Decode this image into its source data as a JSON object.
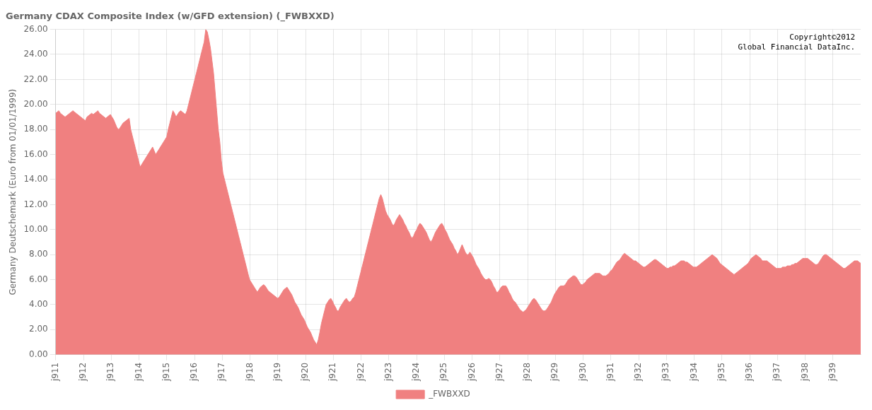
{
  "chart_data": {
    "type": "area",
    "title": "Germany CDAX Composite Index (w/GFD extension) (_FWBXXD)",
    "ylabel": "Germany Deutschemark (Euro from 01/01/1999)",
    "annotations": [
      "Copyright©2012\nGlobal Financial DataInc."
    ],
    "x": [
      1911,
      1911.0563,
      1911.1126,
      1911.1689,
      1911.2252,
      1911.2816,
      1911.3379,
      1911.3942,
      1911.4505,
      1911.5068,
      1911.5631,
      1911.6194,
      1911.6757,
      1911.732,
      1911.7883,
      1911.8447,
      1911.901,
      1911.9573,
      1912.0136,
      1912.0699,
      1912.1262,
      1912.1825,
      1912.2388,
      1912.2951,
      1912.3515,
      1912.4078,
      1912.4641,
      1912.5204,
      1912.5767,
      1912.633,
      1912.6893,
      1912.7456,
      1912.8019,
      1912.8583,
      1912.9146,
      1912.9709,
      1913.0272,
      1913.0835,
      1913.1398,
      1913.1961,
      1913.2524,
      1913.3087,
      1913.365,
      1913.4214,
      1913.4777,
      1913.534,
      1913.5903,
      1913.6466,
      1913.7029,
      1913.7592,
      1913.8155,
      1913.8718,
      1913.9282,
      1913.9845,
      1914.0408,
      1914.0971,
      1914.1534,
      1914.2097,
      1914.266,
      1914.3223,
      1914.3786,
      1914.435,
      1914.4913,
      1914.5476,
      1914.6039,
      1914.6602,
      1914.7165,
      1914.7728,
      1914.8291,
      1914.8854,
      1914.9417,
      1914.9981,
      1915.0544,
      1915.1107,
      1915.167,
      1915.2233,
      1915.2796,
      1915.3359,
      1915.3922,
      1915.4485,
      1915.5049,
      1915.5612,
      1915.6175,
      1915.6738,
      1915.7301,
      1915.7864,
      1915.8427,
      1915.899,
      1915.9553,
      1916.0117,
      1916.068,
      1916.1243,
      1916.1806,
      1916.2369,
      1916.2932,
      1916.3495,
      1916.4058,
      1916.4621,
      1916.5184,
      1916.5748,
      1916.6311,
      1916.6874,
      1916.7437,
      1916.8,
      1916.8563,
      1916.9126,
      1916.9689,
      1917.0252,
      1917.0816,
      1917.1379,
      1917.1942,
      1917.2505,
      1917.3068,
      1917.3631,
      1917.4194,
      1917.4757,
      1917.532,
      1917.5883,
      1917.6447,
      1917.701,
      1917.7573,
      1917.8136,
      1917.8699,
      1917.9262,
      1917.9825,
      1918.0388,
      1918.0951,
      1918.1515,
      1918.2078,
      1918.2641,
      1918.3204,
      1918.3767,
      1918.433,
      1918.4893,
      1918.5456,
      1918.6019,
      1918.6583,
      1918.7146,
      1918.7709,
      1918.8272,
      1918.8835,
      1918.9398,
      1918.9961,
      1919.0524,
      1919.1087,
      1919.165,
      1919.2214,
      1919.2777,
      1919.334,
      1919.3903,
      1919.4466,
      1919.5029,
      1919.5592,
      1919.6155,
      1919.6718,
      1919.7282,
      1919.7845,
      1919.8408,
      1919.8971,
      1919.9534,
      1920.0097,
      1920.066,
      1920.1223,
      1920.1786,
      1920.235,
      1920.2913,
      1920.3476,
      1920.4039,
      1920.4602,
      1920.5165,
      1920.5728,
      1920.6291,
      1920.6854,
      1920.7417,
      1920.7981,
      1920.8544,
      1920.9107,
      1920.967,
      1921.0233,
      1921.0796,
      1921.1359,
      1921.1922,
      1921.2485,
      1921.3049,
      1921.3612,
      1921.4175,
      1921.4738,
      1921.5301,
      1921.5864,
      1921.6427,
      1921.699,
      1921.7553,
      1921.8117,
      1921.868,
      1921.9243,
      1921.9806,
      1922.0369,
      1922.0932,
      1922.1495,
      1922.2058,
      1922.2621,
      1922.3184,
      1922.3748,
      1922.4311,
      1922.4874,
      1922.5437,
      1922.6,
      1922.6563,
      1922.7126,
      1922.7689,
      1922.8252,
      1922.8816,
      1922.9379,
      1922.9942,
      1923.0505,
      1923.1068,
      1923.1631,
      1923.2194,
      1923.2757,
      1923.332,
      1923.3883,
      1923.4447,
      1923.501,
      1923.5573,
      1923.6136,
      1923.6699,
      1923.7262,
      1923.7825,
      1923.8388,
      1923.8951,
      1923.9515,
      1924.0078,
      1924.0641,
      1924.1204,
      1924.1767,
      1924.233,
      1924.2893,
      1924.3456,
      1924.4019,
      1924.4583,
      1924.5146,
      1924.5709,
      1924.6272,
      1924.6835,
      1924.7398,
      1924.7961,
      1924.8524,
      1924.9087,
      1924.965,
      1925.0214,
      1925.0777,
      1925.134,
      1925.1903,
      1925.2466,
      1925.3029,
      1925.3592,
      1925.4155,
      1925.4718,
      1925.5282,
      1925.5845,
      1925.6408,
      1925.6971,
      1925.7534,
      1925.8097,
      1925.866,
      1925.9223,
      1925.9786,
      1926.035,
      1926.0913,
      1926.1476,
      1926.2039,
      1926.2602,
      1926.3165,
      1926.3728,
      1926.4291,
      1926.4854,
      1926.5417,
      1926.5981,
      1926.6544,
      1926.7107,
      1926.767,
      1926.8233,
      1926.8796,
      1926.9359,
      1926.9922,
      1927.0485,
      1927.1049,
      1927.1612,
      1927.2175,
      1927.2738,
      1927.3301,
      1927.3864,
      1927.4427,
      1927.499,
      1927.5553,
      1927.6117,
      1927.668,
      1927.7243,
      1927.7806,
      1927.8369,
      1927.8932,
      1927.9495,
      1928.0058,
      1928.0621,
      1928.1184,
      1928.1748,
      1928.2311,
      1928.2874,
      1928.3437,
      1928.4,
      1928.4563,
      1928.5126,
      1928.5689,
      1928.6252,
      1928.6816,
      1928.7379,
      1928.7942,
      1928.8505,
      1928.9068,
      1928.9631,
      1929.0194,
      1929.0757,
      1929.132,
      1929.1883,
      1929.2447,
      1929.301,
      1929.3573,
      1929.4136,
      1929.4699,
      1929.5262,
      1929.5825,
      1929.6388,
      1929.6951,
      1929.7515,
      1929.8078,
      1929.8641,
      1929.9204,
      1929.9767,
      1930.033,
      1930.0893,
      1930.1456,
      1930.2019,
      1930.2583,
      1930.3146,
      1930.3709,
      1930.4272,
      1930.4835,
      1930.5398,
      1930.5961,
      1930.6524,
      1930.7087,
      1930.765,
      1930.8214,
      1930.8777,
      1930.934,
      1930.9903,
      1931.0466,
      1931.1029,
      1931.1592,
      1931.2155,
      1931.2718,
      1931.3282,
      1931.3845,
      1931.4408,
      1931.4971,
      1931.5534,
      1931.6097,
      1931.666,
      1931.7223,
      1931.7786,
      1931.835,
      1931.8913,
      1931.9476,
      1932.0039,
      1932.0602,
      1932.1165,
      1932.1728,
      1932.2291,
      1932.2854,
      1932.3417,
      1932.3981,
      1932.4544,
      1932.5107,
      1932.567,
      1932.6233,
      1932.6796,
      1932.7359,
      1932.7922,
      1932.8485,
      1932.9049,
      1932.9612,
      1933.0175,
      1933.0738,
      1933.1301,
      1933.1864,
      1933.2427,
      1933.299,
      1933.3553,
      1933.4117,
      1933.468,
      1933.5243,
      1933.5806,
      1933.6369,
      1933.6932,
      1933.7495,
      1933.8058,
      1933.8621,
      1933.9184,
      1933.9748,
      1934.0311,
      1934.0874,
      1934.1437,
      1934.2,
      1934.2563,
      1934.3126,
      1934.3689,
      1934.4252,
      1934.4816,
      1934.5379,
      1934.5942,
      1934.6505,
      1934.7068,
      1934.7631,
      1934.8194,
      1934.8757,
      1934.932,
      1934.9883,
      1935.0447,
      1935.101,
      1935.1573,
      1935.2136,
      1935.2699,
      1935.3262,
      1935.3825,
      1935.4388,
      1935.4951,
      1935.5515,
      1935.6078,
      1935.6641,
      1935.7204,
      1935.7767,
      1935.833,
      1935.8893,
      1935.9456,
      1936.0019,
      1936.0583,
      1936.1146,
      1936.1709,
      1936.2272,
      1936.2835,
      1936.3398,
      1936.3961,
      1936.4524,
      1936.5087,
      1936.565,
      1936.6214,
      1936.6777,
      1936.734,
      1936.7903,
      1936.8466,
      1936.9029,
      1936.9592,
      1937.0155,
      1937.0718,
      1937.1282,
      1937.1845,
      1937.2408,
      1937.2971,
      1937.3534,
      1937.4097,
      1937.466,
      1937.5223,
      1937.5786,
      1937.635,
      1937.6913,
      1937.7476,
      1937.8039,
      1937.8602,
      1937.9165,
      1937.9728,
      1938.0291,
      1938.0854,
      1938.1417,
      1938.1981,
      1938.2544,
      1938.3107,
      1938.367,
      1938.4233,
      1938.4796,
      1938.5359,
      1938.5922,
      1938.6485,
      1938.7049,
      1938.7612,
      1938.8175,
      1938.8738,
      1938.9301,
      1938.9864,
      1939.0427,
      1939.099,
      1939.1553,
      1939.2117,
      1939.268,
      1939.3243,
      1939.3806,
      1939.4369,
      1939.4932,
      1939.5495,
      1939.6058,
      1939.6621,
      1939.7184,
      1939.7748,
      1939.8311,
      1939.8874,
      1939.9437,
      1940
    ],
    "series": [
      {
        "name": "_FWBXXD",
        "color": "#f08080",
        "values": [
          19.3,
          19.4,
          19.5,
          19.3,
          19.2,
          19.1,
          19.0,
          19.1,
          19.2,
          19.3,
          19.4,
          19.5,
          19.4,
          19.3,
          19.2,
          19.1,
          19.0,
          18.9,
          18.8,
          18.7,
          19.0,
          19.1,
          19.2,
          19.3,
          19.2,
          19.3,
          19.4,
          19.5,
          19.3,
          19.2,
          19.1,
          19.0,
          18.9,
          19.0,
          19.1,
          19.2,
          19.0,
          18.8,
          18.5,
          18.2,
          18.0,
          18.1,
          18.3,
          18.5,
          18.6,
          18.7,
          18.8,
          18.9,
          18.0,
          17.5,
          17.0,
          16.5,
          16.0,
          15.5,
          15.0,
          15.2,
          15.4,
          15.6,
          15.8,
          16.0,
          16.2,
          16.4,
          16.6,
          16.3,
          16.0,
          16.2,
          16.4,
          16.6,
          16.8,
          17.0,
          17.2,
          17.4,
          18.0,
          18.5,
          19.0,
          19.5,
          19.3,
          19.0,
          19.2,
          19.4,
          19.5,
          19.4,
          19.3,
          19.2,
          19.5,
          20.0,
          20.5,
          21.0,
          21.5,
          22.0,
          22.5,
          23.0,
          23.5,
          24.0,
          24.5,
          25.0,
          26.0,
          25.8,
          25.2,
          24.5,
          23.5,
          22.5,
          21.0,
          19.5,
          18.0,
          17.0,
          15.5,
          14.5,
          14.0,
          13.5,
          13.0,
          12.5,
          12.0,
          11.5,
          11.0,
          10.5,
          10.0,
          9.5,
          9.0,
          8.5,
          8.0,
          7.5,
          7.0,
          6.5,
          6.0,
          5.8,
          5.6,
          5.4,
          5.2,
          5.0,
          5.2,
          5.4,
          5.5,
          5.6,
          5.5,
          5.3,
          5.1,
          5.0,
          4.9,
          4.8,
          4.7,
          4.6,
          4.5,
          4.6,
          4.8,
          5.0,
          5.2,
          5.3,
          5.4,
          5.2,
          5.0,
          4.8,
          4.5,
          4.2,
          4.0,
          3.8,
          3.5,
          3.2,
          3.0,
          2.8,
          2.5,
          2.2,
          2.0,
          1.8,
          1.5,
          1.2,
          1.0,
          0.8,
          1.2,
          1.8,
          2.5,
          3.0,
          3.5,
          4.0,
          4.2,
          4.4,
          4.5,
          4.3,
          4.0,
          3.8,
          3.5,
          3.5,
          3.8,
          4.0,
          4.2,
          4.4,
          4.5,
          4.3,
          4.2,
          4.3,
          4.5,
          4.6,
          5.0,
          5.5,
          6.0,
          6.5,
          7.0,
          7.5,
          8.0,
          8.5,
          9.0,
          9.5,
          10.0,
          10.5,
          11.0,
          11.5,
          12.0,
          12.5,
          12.8,
          12.5,
          12.0,
          11.5,
          11.2,
          11.0,
          10.8,
          10.5,
          10.3,
          10.5,
          10.8,
          11.0,
          11.2,
          11.0,
          10.8,
          10.5,
          10.3,
          10.0,
          9.8,
          9.5,
          9.3,
          9.5,
          9.8,
          10.0,
          10.3,
          10.5,
          10.4,
          10.2,
          10.0,
          9.8,
          9.5,
          9.2,
          9.0,
          9.2,
          9.5,
          9.8,
          10.0,
          10.2,
          10.4,
          10.5,
          10.3,
          10.0,
          9.8,
          9.5,
          9.2,
          9.0,
          8.8,
          8.5,
          8.3,
          8.0,
          8.2,
          8.5,
          8.8,
          8.5,
          8.2,
          8.0,
          8.0,
          8.2,
          8.0,
          7.8,
          7.5,
          7.2,
          7.0,
          6.8,
          6.5,
          6.3,
          6.1,
          6.0,
          6.0,
          6.1,
          6.0,
          5.8,
          5.5,
          5.3,
          5.0,
          5.0,
          5.2,
          5.4,
          5.5,
          5.5,
          5.5,
          5.3,
          5.0,
          4.8,
          4.5,
          4.3,
          4.2,
          4.0,
          3.8,
          3.6,
          3.5,
          3.4,
          3.5,
          3.6,
          3.8,
          4.0,
          4.2,
          4.4,
          4.5,
          4.4,
          4.2,
          4.0,
          3.8,
          3.6,
          3.5,
          3.5,
          3.6,
          3.8,
          4.0,
          4.2,
          4.5,
          4.8,
          5.0,
          5.2,
          5.4,
          5.5,
          5.5,
          5.5,
          5.6,
          5.8,
          6.0,
          6.1,
          6.2,
          6.3,
          6.3,
          6.2,
          6.0,
          5.8,
          5.6,
          5.6,
          5.7,
          5.8,
          6.0,
          6.1,
          6.2,
          6.3,
          6.4,
          6.5,
          6.5,
          6.5,
          6.5,
          6.4,
          6.3,
          6.3,
          6.3,
          6.4,
          6.5,
          6.7,
          6.8,
          7.0,
          7.2,
          7.4,
          7.5,
          7.6,
          7.8,
          8.0,
          8.1,
          8.0,
          7.9,
          7.8,
          7.7,
          7.6,
          7.5,
          7.5,
          7.4,
          7.3,
          7.2,
          7.1,
          7.0,
          7.0,
          7.1,
          7.2,
          7.3,
          7.4,
          7.5,
          7.6,
          7.6,
          7.5,
          7.4,
          7.3,
          7.2,
          7.1,
          7.0,
          6.9,
          6.9,
          7.0,
          7.0,
          7.1,
          7.1,
          7.2,
          7.3,
          7.4,
          7.5,
          7.5,
          7.5,
          7.4,
          7.4,
          7.3,
          7.2,
          7.1,
          7.0,
          7.0,
          7.0,
          7.1,
          7.2,
          7.3,
          7.4,
          7.5,
          7.6,
          7.7,
          7.8,
          7.9,
          8.0,
          7.9,
          7.8,
          7.7,
          7.5,
          7.3,
          7.2,
          7.1,
          7.0,
          6.9,
          6.8,
          6.7,
          6.6,
          6.5,
          6.4,
          6.5,
          6.6,
          6.7,
          6.8,
          6.9,
          7.0,
          7.1,
          7.2,
          7.3,
          7.5,
          7.7,
          7.8,
          7.9,
          8.0,
          7.9,
          7.8,
          7.7,
          7.5,
          7.5,
          7.5,
          7.5,
          7.4,
          7.3,
          7.2,
          7.1,
          7.0,
          6.9,
          6.9,
          6.9,
          6.9,
          7.0,
          7.0,
          7.0,
          7.1,
          7.1,
          7.1,
          7.2,
          7.2,
          7.3,
          7.3,
          7.4,
          7.5,
          7.6,
          7.7,
          7.7,
          7.7,
          7.7,
          7.6,
          7.5,
          7.4,
          7.3,
          7.2,
          7.2,
          7.3,
          7.5,
          7.7,
          7.9,
          8.0,
          8.0,
          7.9,
          7.8,
          7.7,
          7.6,
          7.5,
          7.4,
          7.3,
          7.2,
          7.1,
          7.0,
          6.9,
          6.9,
          7.0,
          7.1,
          7.2,
          7.3,
          7.4,
          7.5,
          7.5,
          7.5,
          7.4,
          7.3
        ]
      }
    ],
    "xlim": [
      1911,
      1940
    ],
    "xticks": [
      {
        "value": 1911,
        "label": "j911"
      },
      {
        "value": 1912,
        "label": "j912"
      },
      {
        "value": 1913,
        "label": "j913"
      },
      {
        "value": 1914,
        "label": "j914"
      },
      {
        "value": 1915,
        "label": "j915"
      },
      {
        "value": 1916,
        "label": "j916"
      },
      {
        "value": 1917,
        "label": "j917"
      },
      {
        "value": 1918,
        "label": "j918"
      },
      {
        "value": 1919,
        "label": "j919"
      },
      {
        "value": 1920,
        "label": "j920"
      },
      {
        "value": 1921,
        "label": "j921"
      },
      {
        "value": 1922,
        "label": "j922"
      },
      {
        "value": 1923,
        "label": "j923"
      },
      {
        "value": 1924,
        "label": "j924"
      },
      {
        "value": 1925,
        "label": "j925"
      },
      {
        "value": 1926,
        "label": "j926"
      },
      {
        "value": 1927,
        "label": "j927"
      },
      {
        "value": 1928,
        "label": "j928"
      },
      {
        "value": 1929,
        "label": "j929"
      },
      {
        "value": 1930,
        "label": "j930"
      },
      {
        "value": 1931,
        "label": "j931"
      },
      {
        "value": 1932,
        "label": "j932"
      },
      {
        "value": 1933,
        "label": "j933"
      },
      {
        "value": 1934,
        "label": "j934"
      },
      {
        "value": 1935,
        "label": "j935"
      },
      {
        "value": 1936,
        "label": "j936"
      },
      {
        "value": 1937,
        "label": "j937"
      },
      {
        "value": 1938,
        "label": "j938"
      },
      {
        "value": 1939,
        "label": "j939"
      }
    ],
    "ylim": [
      0,
      26
    ],
    "yticks": [
      {
        "value": 0,
        "label": "0.00"
      },
      {
        "value": 2,
        "label": "2.00"
      },
      {
        "value": 4,
        "label": "4.00"
      },
      {
        "value": 6,
        "label": "6.00"
      },
      {
        "value": 8,
        "label": "8.00"
      },
      {
        "value": 10,
        "label": "10.00"
      },
      {
        "value": 12,
        "label": "12.00"
      },
      {
        "value": 14,
        "label": "14.00"
      },
      {
        "value": 16,
        "label": "16.00"
      },
      {
        "value": 18,
        "label": "18.00"
      },
      {
        "value": 20,
        "label": "20.00"
      },
      {
        "value": 22,
        "label": "22.00"
      },
      {
        "value": 24,
        "label": "24.00"
      },
      {
        "value": 26,
        "label": "26.00"
      }
    ],
    "grid": true,
    "legend": "bottom"
  }
}
